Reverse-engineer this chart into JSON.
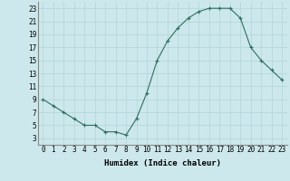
{
  "x": [
    0,
    1,
    2,
    3,
    4,
    5,
    6,
    7,
    8,
    9,
    10,
    11,
    12,
    13,
    14,
    15,
    16,
    17,
    18,
    19,
    20,
    21,
    22,
    23
  ],
  "y": [
    9,
    8,
    7,
    6,
    5,
    5,
    4,
    4,
    3.5,
    6,
    10,
    15,
    18,
    20,
    21.5,
    22.5,
    23,
    23,
    23,
    21.5,
    17,
    15,
    13.5,
    12
  ],
  "line_color": "#2d6e5e",
  "marker": "+",
  "marker_size": 3,
  "marker_linewidth": 0.8,
  "line_width": 0.8,
  "bg_color": "#cce8ec",
  "grid_color": "#b0d4d8",
  "xlabel": "Humidex (Indice chaleur)",
  "xlim": [
    -0.5,
    23.5
  ],
  "ylim": [
    2,
    24
  ],
  "yticks": [
    3,
    5,
    7,
    9,
    11,
    13,
    15,
    17,
    19,
    21,
    23
  ],
  "xticks": [
    0,
    1,
    2,
    3,
    4,
    5,
    6,
    7,
    8,
    9,
    10,
    11,
    12,
    13,
    14,
    15,
    16,
    17,
    18,
    19,
    20,
    21,
    22,
    23
  ],
  "xlabel_fontsize": 6.5,
  "tick_fontsize": 5.5
}
